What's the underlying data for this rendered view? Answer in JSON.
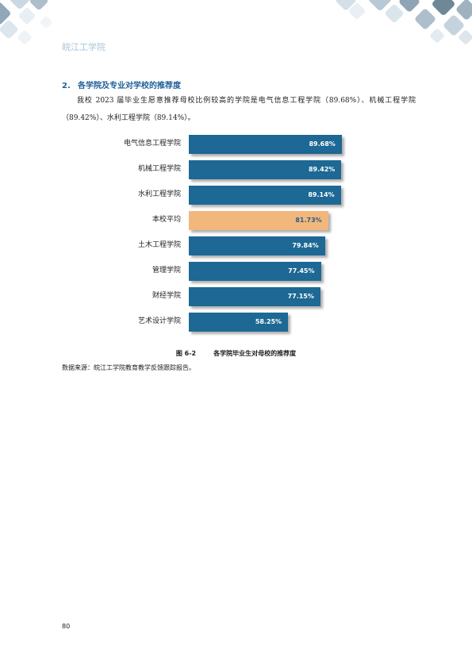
{
  "header": {
    "school_name": "皖江工学院"
  },
  "section": {
    "number": "2.",
    "title": "各学院及专业对学校的推荐度",
    "paragraph": "我校 2023 届毕业生愿意推荐母校比例较高的学院是电气信息工程学院（89.68%）、机械工程学院（89.42%）、水利工程学院（89.14%）。"
  },
  "colors": {
    "primary_bar": "#1d6894",
    "average_bar": "#f1b77c",
    "heading": "#1f5f9a"
  },
  "chart_data": {
    "type": "bar",
    "orientation": "horizontal",
    "categories": [
      "电气信息工程学院",
      "机械工程学院",
      "水利工程学院",
      "本校平均",
      "土木工程学院",
      "管理学院",
      "财经学院",
      "艺术设计学院"
    ],
    "values": [
      89.68,
      89.42,
      89.14,
      81.73,
      79.84,
      77.45,
      77.15,
      58.25
    ],
    "value_labels": [
      "89.68%",
      "89.42%",
      "89.14%",
      "81.73%",
      "79.84%",
      "77.45%",
      "77.15%",
      "58.25%"
    ],
    "highlight_category": "本校平均",
    "unit": "%",
    "grid": false,
    "legend": "none"
  },
  "figure": {
    "number": "图 6-2",
    "caption": "各学院毕业生对母校的推荐度"
  },
  "source": "数据来源：皖江工学院教育教学反馈跟踪报告。",
  "page_number": "80"
}
